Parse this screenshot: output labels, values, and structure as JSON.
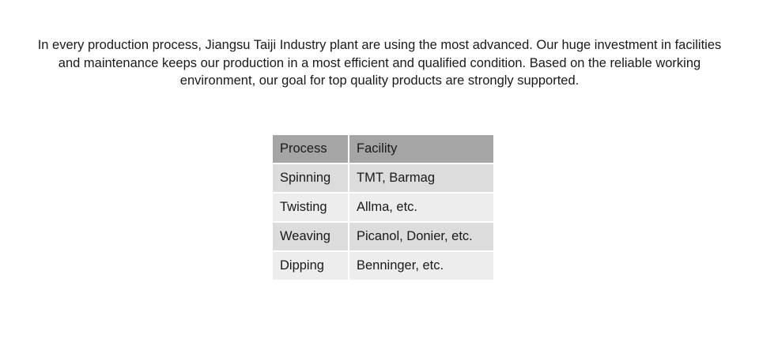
{
  "intro": "In every production process, Jiangsu Taiji Industry plant are using the most advanced. Our huge investment in facilities and maintenance keeps our production in a most efficient and qualified condition. Based on the reliable working environment, our goal for top quality products are strongly supported.",
  "table": {
    "headers": [
      "Process",
      "Facility"
    ],
    "rows": [
      [
        "Spinning",
        "TMT, Barmag"
      ],
      [
        "Twisting",
        "Allma, etc."
      ],
      [
        "Weaving",
        "Picanol, Donier, etc."
      ],
      [
        "Dipping",
        "Benninger, etc."
      ]
    ],
    "colors": {
      "header": "#a5a5a5",
      "row_dark": "#dcdcdc",
      "row_light": "#ededed"
    }
  }
}
